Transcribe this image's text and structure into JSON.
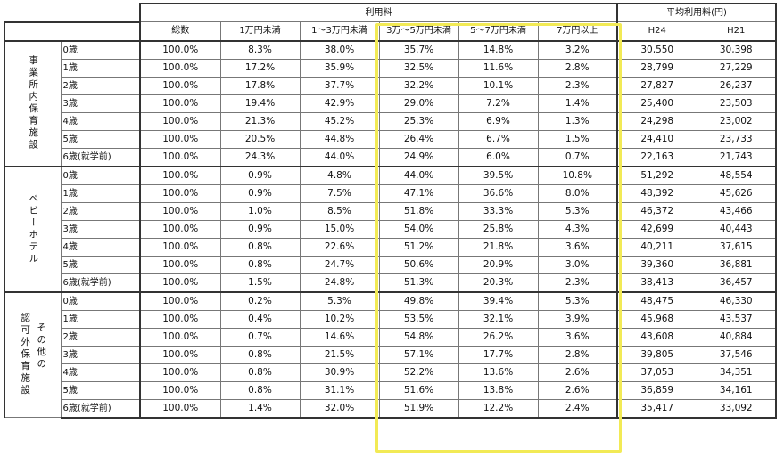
{
  "header": {
    "usage_fee": "利用料",
    "avg_fee": "平均利用料(円)",
    "columns": [
      "総数",
      "1万円未満",
      "1～3万円未満",
      "3万～5万円未満",
      "5～7万円未満",
      "7万円以上",
      "H24",
      "H21"
    ]
  },
  "groups": [
    {
      "label_cols": [
        "事業所内保育施設"
      ],
      "rows": [
        {
          "age": "0歳",
          "vals": [
            "100.0%",
            "8.3%",
            "38.0%",
            "35.7%",
            "14.8%",
            "3.2%",
            "30,550",
            "30,398"
          ]
        },
        {
          "age": "1歳",
          "vals": [
            "100.0%",
            "17.2%",
            "35.9%",
            "32.5%",
            "11.6%",
            "2.8%",
            "28,799",
            "27,229"
          ]
        },
        {
          "age": "2歳",
          "vals": [
            "100.0%",
            "17.8%",
            "37.7%",
            "32.2%",
            "10.1%",
            "2.3%",
            "27,827",
            "26,237"
          ]
        },
        {
          "age": "3歳",
          "vals": [
            "100.0%",
            "19.4%",
            "42.9%",
            "29.0%",
            "7.2%",
            "1.4%",
            "25,400",
            "23,503"
          ]
        },
        {
          "age": "4歳",
          "vals": [
            "100.0%",
            "21.3%",
            "45.2%",
            "25.3%",
            "6.9%",
            "1.3%",
            "24,298",
            "23,002"
          ]
        },
        {
          "age": "5歳",
          "vals": [
            "100.0%",
            "20.5%",
            "44.8%",
            "26.4%",
            "6.7%",
            "1.5%",
            "24,410",
            "23,733"
          ]
        },
        {
          "age": "6歳(就学前)",
          "vals": [
            "100.0%",
            "24.3%",
            "44.0%",
            "24.9%",
            "6.0%",
            "0.7%",
            "22,163",
            "21,743"
          ]
        }
      ]
    },
    {
      "label_cols": [
        "ベビーホテル"
      ],
      "rows": [
        {
          "age": "0歳",
          "vals": [
            "100.0%",
            "0.9%",
            "4.8%",
            "44.0%",
            "39.5%",
            "10.8%",
            "51,292",
            "48,554"
          ]
        },
        {
          "age": "1歳",
          "vals": [
            "100.0%",
            "0.9%",
            "7.5%",
            "47.1%",
            "36.6%",
            "8.0%",
            "48,392",
            "45,626"
          ]
        },
        {
          "age": "2歳",
          "vals": [
            "100.0%",
            "1.0%",
            "8.5%",
            "51.8%",
            "33.3%",
            "5.3%",
            "46,372",
            "43,466"
          ]
        },
        {
          "age": "3歳",
          "vals": [
            "100.0%",
            "0.9%",
            "15.0%",
            "54.0%",
            "25.8%",
            "4.3%",
            "42,699",
            "40,443"
          ]
        },
        {
          "age": "4歳",
          "vals": [
            "100.0%",
            "0.8%",
            "22.6%",
            "51.2%",
            "21.8%",
            "3.6%",
            "40,211",
            "37,615"
          ]
        },
        {
          "age": "5歳",
          "vals": [
            "100.0%",
            "0.8%",
            "24.7%",
            "50.6%",
            "20.9%",
            "3.0%",
            "39,360",
            "36,881"
          ]
        },
        {
          "age": "6歳(就学前)",
          "vals": [
            "100.0%",
            "1.5%",
            "24.8%",
            "51.3%",
            "20.3%",
            "2.3%",
            "38,413",
            "36,457"
          ]
        }
      ]
    },
    {
      "label_cols": [
        "認可外保育施設",
        "その他の"
      ],
      "rows": [
        {
          "age": "0歳",
          "vals": [
            "100.0%",
            "0.2%",
            "5.3%",
            "49.8%",
            "39.4%",
            "5.3%",
            "48,475",
            "46,330"
          ]
        },
        {
          "age": "1歳",
          "vals": [
            "100.0%",
            "0.4%",
            "10.2%",
            "53.5%",
            "32.1%",
            "3.9%",
            "45,968",
            "43,537"
          ]
        },
        {
          "age": "2歳",
          "vals": [
            "100.0%",
            "0.7%",
            "14.6%",
            "54.8%",
            "26.2%",
            "3.6%",
            "43,608",
            "40,884"
          ]
        },
        {
          "age": "3歳",
          "vals": [
            "100.0%",
            "0.8%",
            "21.5%",
            "57.1%",
            "17.7%",
            "2.8%",
            "39,805",
            "37,546"
          ]
        },
        {
          "age": "4歳",
          "vals": [
            "100.0%",
            "0.8%",
            "30.9%",
            "52.2%",
            "13.6%",
            "2.6%",
            "37,053",
            "34,351"
          ]
        },
        {
          "age": "5歳",
          "vals": [
            "100.0%",
            "0.8%",
            "31.1%",
            "51.6%",
            "13.8%",
            "2.6%",
            "36,859",
            "34,161"
          ]
        },
        {
          "age": "6歳(就学前)",
          "vals": [
            "100.0%",
            "1.4%",
            "32.0%",
            "51.9%",
            "12.2%",
            "2.4%",
            "35,417",
            "33,092"
          ]
        }
      ]
    }
  ],
  "highlight_color": "#f2ea55"
}
